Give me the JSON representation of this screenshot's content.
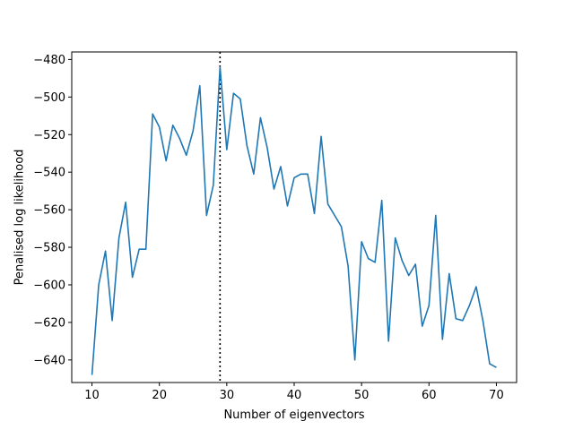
{
  "chart_data": {
    "type": "line",
    "title": "",
    "xlabel": "Number of eigenvectors",
    "ylabel": "Penalised log likelihood",
    "xlim": [
      7,
      73
    ],
    "ylim": [
      -652,
      -476
    ],
    "xticks": [
      10,
      20,
      30,
      40,
      50,
      60,
      70
    ],
    "yticks": [
      -640,
      -620,
      -600,
      -580,
      -560,
      -540,
      -520,
      -500,
      -480
    ],
    "grid": false,
    "vline": {
      "x": 29,
      "style": "dotted",
      "color": "#000000"
    },
    "series": [
      {
        "color": "#1f77b4",
        "x": [
          10,
          11,
          12,
          13,
          14,
          15,
          16,
          17,
          18,
          19,
          20,
          21,
          22,
          23,
          24,
          25,
          26,
          27,
          28,
          29,
          30,
          31,
          32,
          33,
          34,
          35,
          36,
          37,
          38,
          39,
          40,
          41,
          42,
          43,
          44,
          45,
          46,
          47,
          48,
          49,
          50,
          51,
          52,
          53,
          54,
          55,
          56,
          57,
          58,
          59,
          60,
          61,
          62,
          63,
          64,
          65,
          66,
          67,
          68,
          69,
          70
        ],
        "values": [
          -648,
          -600,
          -582,
          -619,
          -575,
          -556,
          -596,
          -581,
          -581,
          -509,
          -516,
          -534,
          -515,
          -522,
          -531,
          -518,
          -494,
          -563,
          -547,
          -484,
          -528,
          -498,
          -501,
          -526,
          -541,
          -511,
          -527,
          -549,
          -537,
          -558,
          -543,
          -541,
          -541,
          -562,
          -521,
          -557,
          -563,
          -569,
          -590,
          -640,
          -577,
          -586,
          -588,
          -555,
          -630,
          -575,
          -587,
          -595,
          -589,
          -622,
          -611,
          -563,
          -629,
          -594,
          -618,
          -619,
          -611,
          -601,
          -619,
          -642,
          -644
        ]
      }
    ]
  }
}
